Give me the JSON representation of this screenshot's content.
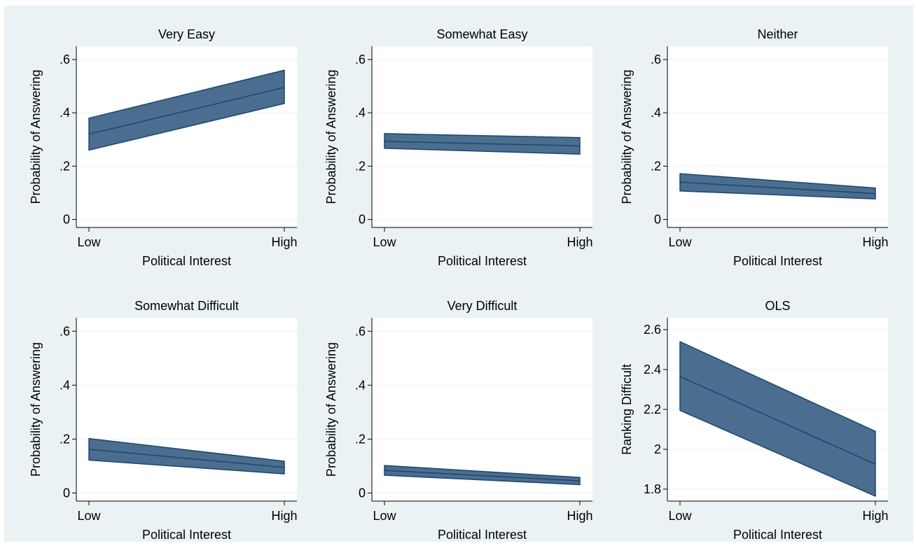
{
  "colors": {
    "figure_background": "#eaf2f3",
    "plot_background": "#ffffff",
    "band_fill": "#4b6d8f",
    "band_line": "#1a476f",
    "grid": "#eaf2f3"
  },
  "chart_data": [
    {
      "type": "area",
      "title": "Very Easy",
      "xlabel": "Political Interest",
      "ylabel": "Probability of Answering",
      "categories": [
        "Low",
        "High"
      ],
      "yticks": [
        0,
        0.2,
        0.4,
        0.6
      ],
      "ytick_labels": [
        "0",
        ".2",
        ".4",
        ".6"
      ],
      "ylim": [
        -0.03,
        0.65
      ],
      "grid": true,
      "series": [
        {
          "estimate": [
            0.32,
            0.495
          ],
          "lower": [
            0.26,
            0.435
          ],
          "upper": [
            0.38,
            0.56
          ]
        }
      ]
    },
    {
      "type": "area",
      "title": "Somewhat Easy",
      "xlabel": "Political Interest",
      "ylabel": "Probability of Answering",
      "categories": [
        "Low",
        "High"
      ],
      "yticks": [
        0,
        0.2,
        0.4,
        0.6
      ],
      "ytick_labels": [
        "0",
        ".2",
        ".4",
        ".6"
      ],
      "ylim": [
        -0.03,
        0.65
      ],
      "grid": true,
      "series": [
        {
          "estimate": [
            0.293,
            0.276
          ],
          "lower": [
            0.267,
            0.245
          ],
          "upper": [
            0.322,
            0.307
          ]
        }
      ]
    },
    {
      "type": "area",
      "title": "Neither",
      "xlabel": "Political Interest",
      "ylabel": "Probability of Answering",
      "categories": [
        "Low",
        "High"
      ],
      "yticks": [
        0,
        0.2,
        0.4,
        0.6
      ],
      "ytick_labels": [
        "0",
        ".2",
        ".4",
        ".6"
      ],
      "ylim": [
        -0.03,
        0.65
      ],
      "grid": true,
      "series": [
        {
          "estimate": [
            0.14,
            0.097
          ],
          "lower": [
            0.107,
            0.077
          ],
          "upper": [
            0.172,
            0.118
          ]
        }
      ]
    },
    {
      "type": "area",
      "title": "Somewhat Difficult",
      "xlabel": "Political Interest",
      "ylabel": "Probability of Answering",
      "categories": [
        "Low",
        "High"
      ],
      "yticks": [
        0,
        0.2,
        0.4,
        0.6
      ],
      "ytick_labels": [
        "0",
        ".2",
        ".4",
        ".6"
      ],
      "ylim": [
        -0.03,
        0.65
      ],
      "grid": true,
      "series": [
        {
          "estimate": [
            0.162,
            0.095
          ],
          "lower": [
            0.122,
            0.071
          ],
          "upper": [
            0.202,
            0.118
          ]
        }
      ]
    },
    {
      "type": "area",
      "title": "Very Difficult",
      "xlabel": "Political Interest",
      "ylabel": "Probability of Answering",
      "categories": [
        "Low",
        "High"
      ],
      "yticks": [
        0,
        0.2,
        0.4,
        0.6
      ],
      "ytick_labels": [
        "0",
        ".2",
        ".4",
        ".6"
      ],
      "ylim": [
        -0.03,
        0.65
      ],
      "grid": true,
      "series": [
        {
          "estimate": [
            0.084,
            0.045
          ],
          "lower": [
            0.066,
            0.031
          ],
          "upper": [
            0.102,
            0.058
          ]
        }
      ]
    },
    {
      "type": "area",
      "title": "OLS",
      "xlabel": "Political Interest",
      "ylabel": "Ranking Difficult",
      "categories": [
        "Low",
        "High"
      ],
      "yticks": [
        1.8,
        2.0,
        2.2,
        2.4,
        2.6
      ],
      "ytick_labels": [
        "1.8",
        "2",
        "2.2",
        "2.4",
        "2.6"
      ],
      "ylim": [
        1.74,
        2.66
      ],
      "grid": true,
      "series": [
        {
          "estimate": [
            2.365,
            1.925
          ],
          "lower": [
            2.195,
            1.765
          ],
          "upper": [
            2.54,
            2.09
          ]
        }
      ]
    }
  ]
}
